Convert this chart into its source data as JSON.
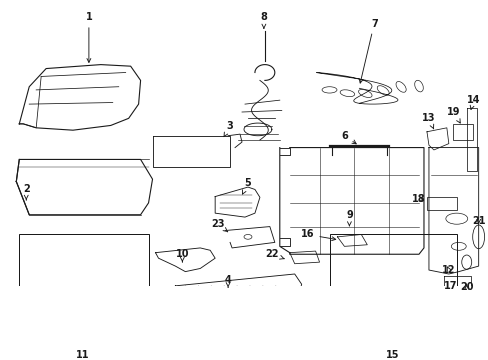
{
  "bg_color": "#ffffff",
  "line_color": "#1a1a1a",
  "fig_width": 4.89,
  "fig_height": 3.6,
  "dpi": 100,
  "lw": 0.8,
  "font_size": 7.0
}
